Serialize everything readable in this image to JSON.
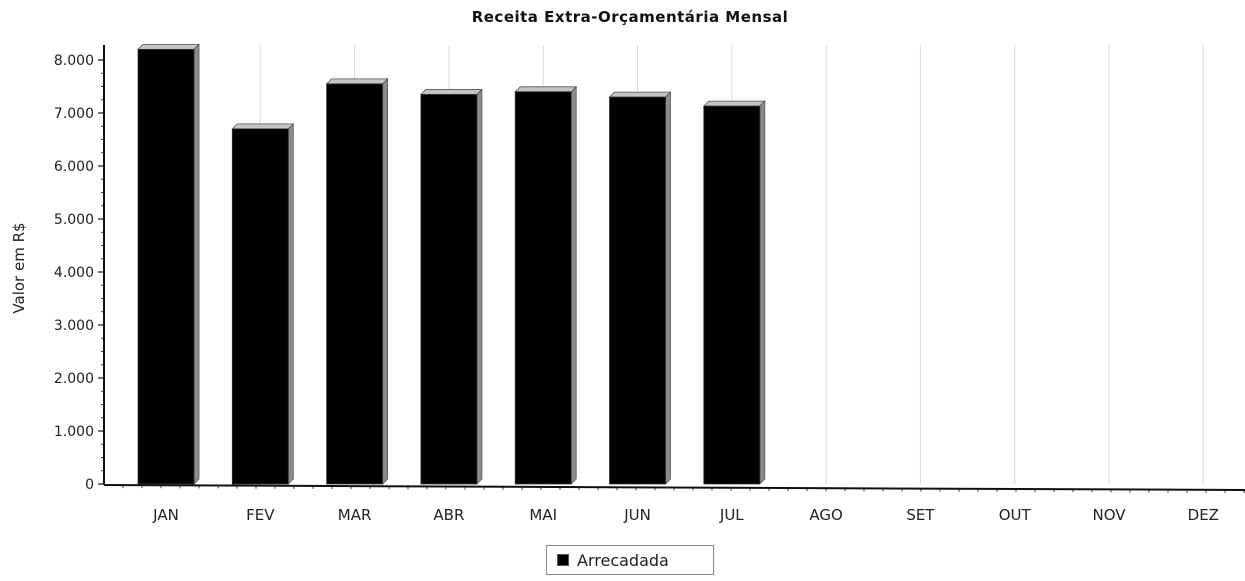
{
  "chart_data": {
    "type": "bar",
    "title": "Receita Extra-Orçamentária Mensal",
    "xlabel": "",
    "ylabel": "Valor em R$",
    "categories": [
      "JAN",
      "FEV",
      "MAR",
      "ABR",
      "MAI",
      "JUN",
      "JUL",
      "AGO",
      "SET",
      "OUT",
      "NOV",
      "DEZ"
    ],
    "series": [
      {
        "name": "Arrecadada",
        "values": [
          8200,
          6700,
          7550,
          7350,
          7400,
          7300,
          7130,
          null,
          null,
          null,
          null,
          null
        ],
        "color": "#000000"
      }
    ],
    "ylim": [
      0,
      8000
    ],
    "yticks": [
      0,
      1000,
      2000,
      3000,
      4000,
      5000,
      6000,
      7000,
      8000
    ],
    "ytick_labels": [
      "0",
      "1.000",
      "2.000",
      "3.000",
      "4.000",
      "5.000",
      "6.000",
      "7.000",
      "8.000"
    ],
    "grid": "vertical",
    "legend_position": "bottom-center",
    "colors": {
      "bar": "#000000",
      "bar_side": "#8c8c8c",
      "bar_top": "#c4c4c4",
      "grid": "#d9d9d9",
      "axis": "#111111"
    }
  }
}
